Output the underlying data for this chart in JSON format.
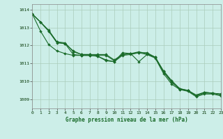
{
  "title": "Graphe pression niveau de la mer (hPa)",
  "background_color": "#cceee8",
  "grid_color": "#aaccbb",
  "line_color": "#1a6b2a",
  "xlim": [
    0,
    23
  ],
  "ylim": [
    1008.5,
    1014.3
  ],
  "yticks": [
    1009,
    1010,
    1011,
    1012,
    1013,
    1014
  ],
  "xticks": [
    0,
    1,
    2,
    3,
    4,
    5,
    6,
    7,
    8,
    9,
    10,
    11,
    12,
    13,
    14,
    15,
    16,
    17,
    18,
    19,
    20,
    21,
    22,
    23
  ],
  "x": [
    0,
    1,
    2,
    3,
    4,
    5,
    6,
    7,
    8,
    9,
    10,
    11,
    12,
    13,
    14,
    15,
    16,
    17,
    18,
    19,
    20,
    21,
    22,
    23
  ],
  "line1": [
    1013.75,
    1013.3,
    1012.8,
    1012.2,
    1012.15,
    1011.65,
    1011.5,
    1011.5,
    1011.45,
    1011.45,
    1011.15,
    1011.5,
    1011.55,
    1011.65,
    1011.55,
    1011.35,
    1010.55,
    1009.95,
    1009.6,
    1009.5,
    1009.2,
    1009.35,
    1009.35,
    1009.25
  ],
  "line2": [
    1013.75,
    1013.3,
    1012.8,
    1012.15,
    1012.1,
    1011.5,
    1011.45,
    1011.45,
    1011.4,
    1011.2,
    1011.1,
    1011.45,
    1011.5,
    1011.6,
    1011.5,
    1011.3,
    1010.45,
    1009.85,
    1009.55,
    1009.45,
    1009.15,
    1009.3,
    1009.3,
    1009.2
  ],
  "line3": [
    1013.75,
    1012.8,
    1012.05,
    1011.7,
    1011.55,
    1011.45,
    1011.45,
    1011.45,
    1011.4,
    1011.15,
    1011.1,
    1011.6,
    1011.55,
    1011.1,
    1011.5,
    1011.35,
    1010.55,
    1010.0,
    1009.55,
    1009.5,
    1009.2,
    1009.4,
    1009.35,
    1009.3
  ],
  "line4": [
    1013.75,
    1013.3,
    1012.85,
    1012.2,
    1012.1,
    1011.7,
    1011.5,
    1011.5,
    1011.5,
    1011.5,
    1011.2,
    1011.5,
    1011.55,
    1011.6,
    1011.6,
    1011.35,
    1010.6,
    1010.05,
    1009.6,
    1009.5,
    1009.25,
    1009.4,
    1009.35,
    1009.3
  ]
}
